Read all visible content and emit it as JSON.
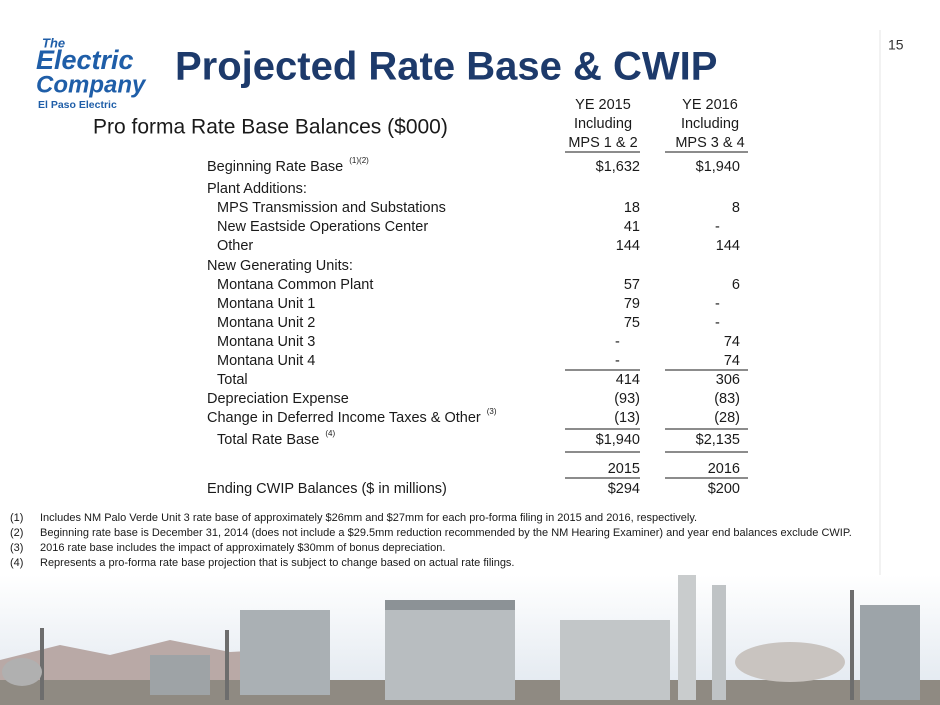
{
  "page_number": "15",
  "logo": {
    "script": [
      "The",
      "Electric",
      "Company"
    ],
    "caption": "El Paso Electric"
  },
  "title": "Projected Rate Base & CWIP",
  "subtitle": "Pro forma Rate Base Balances ($000)",
  "table": {
    "columns": [
      [
        "YE 2015",
        "Including",
        "MPS 1 & 2"
      ],
      [
        "YE 2016",
        "Including",
        "MPS 3 & 4"
      ]
    ],
    "rows": [
      {
        "label": "Beginning Rate Base",
        "note": "(1)(2)",
        "values": [
          "$1,632",
          "$1,940"
        ]
      },
      {
        "label": "Plant Additions:"
      },
      {
        "label": "MPS Transmission and Substations",
        "values": [
          "18",
          "8"
        ]
      },
      {
        "label": "New Eastside Operations Center",
        "values": [
          "41",
          "-"
        ]
      },
      {
        "label": "Other",
        "values": [
          "144",
          "144"
        ]
      },
      {
        "label": "New Generating Units:"
      },
      {
        "label": "Montana Common Plant",
        "values": [
          "57",
          "6"
        ]
      },
      {
        "label": "Montana Unit 1",
        "values": [
          "79",
          "-"
        ]
      },
      {
        "label": "Montana Unit 2",
        "values": [
          "75",
          "-"
        ]
      },
      {
        "label": "Montana Unit 3",
        "values": [
          "-",
          "74"
        ]
      },
      {
        "label": "Montana Unit 4",
        "values": [
          "-",
          "74"
        ]
      },
      {
        "label": "Total",
        "values": [
          "414",
          "306"
        ]
      },
      {
        "label": "Depreciation Expense",
        "values": [
          "(93)",
          "(83)"
        ]
      },
      {
        "label": "Change in Deferred Income Taxes & Other",
        "note": "(3)",
        "values": [
          "(13)",
          "(28)"
        ]
      },
      {
        "label": "Total Rate Base",
        "note": "(4)",
        "values": [
          "$1,940",
          "$2,135"
        ]
      }
    ],
    "cwip_years": [
      "2015",
      "2016"
    ],
    "cwip": {
      "label": "Ending CWIP Balances ($ in millions)",
      "values": [
        "$294",
        "$200"
      ]
    }
  },
  "footnotes": [
    {
      "marker": "(1)",
      "text": "Includes NM Palo Verde Unit 3 rate base of approximately $26mm and $27mm for each pro-forma filing in 2015 and 2016, respectively."
    },
    {
      "marker": "(2)",
      "text": "Beginning rate base is December 31, 2014  (does not include a $29.5mm reduction recommended by the NM Hearing Examiner) and year end balances exclude CWIP."
    },
    {
      "marker": "(3)",
      "text": "2016 rate base includes the impact of approximately $30mm of bonus depreciation."
    },
    {
      "marker": "(4)",
      "text": "Represents a pro-forma rate base projection that is subject to change based on actual rate filings."
    }
  ]
}
